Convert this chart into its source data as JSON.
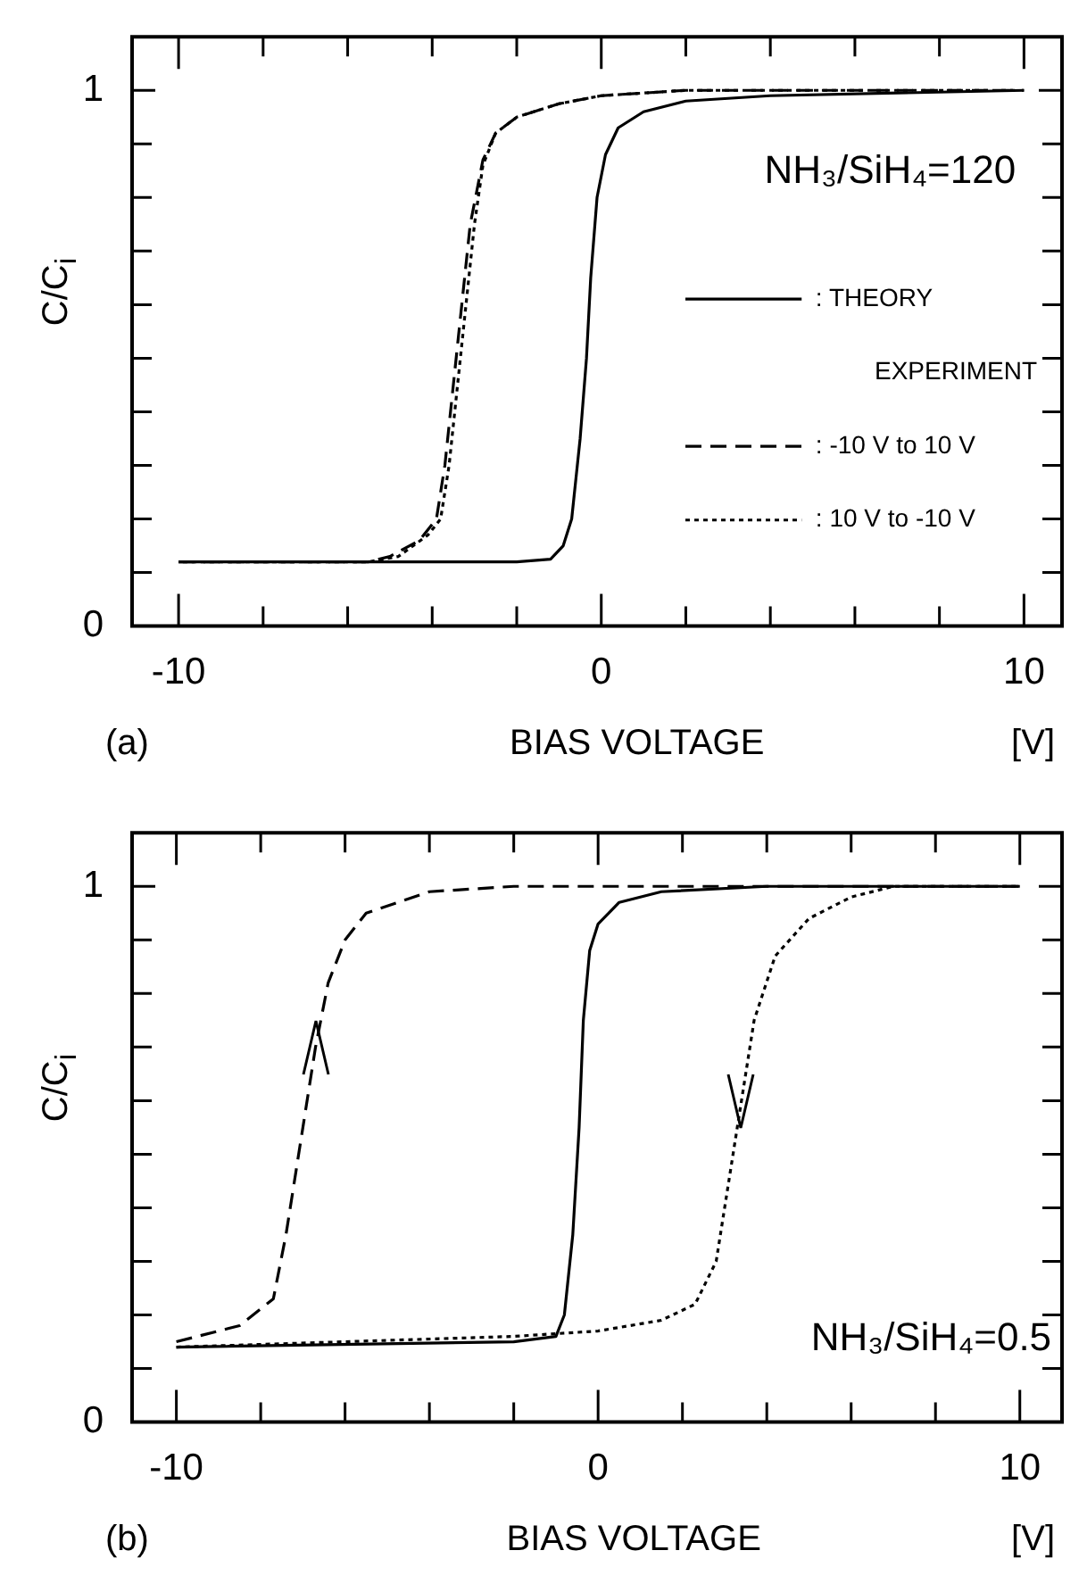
{
  "chart_data": [
    {
      "type": "line",
      "title": "(a)",
      "xlabel": "BIAS VOLTAGE",
      "ylabel": "C/C$_{i}$",
      "legend_title": "EXPERIMENT",
      "legend": "right",
      "annotations": [
        "NH₃/SiH₄=120",
        "[V]"
      ],
      "xlim": [
        -11.1,
        10.9
      ],
      "ylim": [
        0,
        1.1
      ],
      "xticks": [
        {
          "value": -10,
          "label": "-10"
        },
        {
          "value": -8,
          "label": null
        },
        {
          "value": -6,
          "label": null
        },
        {
          "value": -4,
          "label": null
        },
        {
          "value": -2,
          "label": null
        },
        {
          "value": 0,
          "label": "0"
        },
        {
          "value": 2,
          "label": null
        },
        {
          "value": 4,
          "label": null
        },
        {
          "value": 6,
          "label": null
        },
        {
          "value": 8,
          "label": null
        },
        {
          "value": 10,
          "label": "10"
        }
      ],
      "yticks": [
        {
          "value": 0,
          "label": "0"
        },
        {
          "value": 0.1,
          "label": null
        },
        {
          "value": 0.2,
          "label": null
        },
        {
          "value": 0.3,
          "label": null
        },
        {
          "value": 0.4,
          "label": null
        },
        {
          "value": 0.5,
          "label": null
        },
        {
          "value": 0.6,
          "label": null
        },
        {
          "value": 0.7,
          "label": null
        },
        {
          "value": 0.8,
          "label": null
        },
        {
          "value": 0.9,
          "label": null
        },
        {
          "value": 1,
          "label": "1"
        }
      ],
      "grid": false,
      "marker": "none",
      "series": [
        {
          "name": ": THEORY",
          "color": "#000000",
          "line_style": "solid",
          "x": [
            -10,
            -2,
            -1.2,
            -0.9,
            -0.7,
            -0.5,
            -0.35,
            -0.25,
            -0.1,
            0.1,
            0.4,
            1,
            2,
            4,
            10
          ],
          "values": [
            0.12,
            0.12,
            0.125,
            0.15,
            0.2,
            0.35,
            0.5,
            0.65,
            0.8,
            0.88,
            0.93,
            0.96,
            0.98,
            0.99,
            1.0
          ]
        },
        {
          "name": ": -10 V to 10 V",
          "color": "#000000",
          "line_style": "dashed",
          "x": [
            -10,
            -5.5,
            -5,
            -4.3,
            -3.9,
            -3.7,
            -3.5,
            -3.3,
            -3.1,
            -2.8,
            -2.5,
            -2,
            -1,
            0,
            2,
            10
          ],
          "values": [
            0.12,
            0.12,
            0.13,
            0.16,
            0.2,
            0.3,
            0.45,
            0.6,
            0.75,
            0.87,
            0.92,
            0.95,
            0.975,
            0.99,
            1.0,
            1.0
          ]
        },
        {
          "name": ": 10 V to -10 V",
          "color": "#000000",
          "line_style": "dotted",
          "x": [
            -9.9,
            -5.5,
            -4.8,
            -4.1,
            -3.8,
            -3.6,
            -3.4,
            -3.2,
            -3.0,
            -2.8,
            -2.5,
            -2,
            -1,
            0,
            2,
            9.8
          ],
          "values": [
            0.12,
            0.12,
            0.13,
            0.17,
            0.2,
            0.3,
            0.45,
            0.6,
            0.75,
            0.86,
            0.92,
            0.95,
            0.975,
            0.99,
            1.0,
            1.0
          ]
        }
      ]
    },
    {
      "type": "line",
      "title": "(b)",
      "xlabel": "BIAS VOLTAGE",
      "ylabel": "C/C$_{i}$",
      "annotations": [
        "NH₃/SiH₄=0.5",
        "[V]"
      ],
      "xlim": [
        -11.05,
        11
      ],
      "ylim": [
        0,
        1.1
      ],
      "xticks": [
        {
          "value": -10,
          "label": "-10"
        },
        {
          "value": -8,
          "label": null
        },
        {
          "value": -6,
          "label": null
        },
        {
          "value": -4,
          "label": null
        },
        {
          "value": -2,
          "label": null
        },
        {
          "value": 0,
          "label": "0"
        },
        {
          "value": 2,
          "label": null
        },
        {
          "value": 4,
          "label": null
        },
        {
          "value": 6,
          "label": null
        },
        {
          "value": 8,
          "label": null
        },
        {
          "value": 10,
          "label": "10"
        }
      ],
      "yticks": [
        {
          "value": 0,
          "label": "0"
        },
        {
          "value": 0.1,
          "label": null
        },
        {
          "value": 0.2,
          "label": null
        },
        {
          "value": 0.3,
          "label": null
        },
        {
          "value": 0.4,
          "label": null
        },
        {
          "value": 0.5,
          "label": null
        },
        {
          "value": 0.6,
          "label": null
        },
        {
          "value": 0.7,
          "label": null
        },
        {
          "value": 0.8,
          "label": null
        },
        {
          "value": 0.9,
          "label": null
        },
        {
          "value": 1,
          "label": "1"
        }
      ],
      "grid": false,
      "marker": "none",
      "series": [
        {
          "color": "#000000",
          "line_style": "solid",
          "x": [
            -10,
            -2,
            -1,
            -0.8,
            -0.6,
            -0.45,
            -0.35,
            -0.2,
            0,
            0.5,
            1.5,
            4,
            10
          ],
          "values": [
            0.14,
            0.15,
            0.16,
            0.2,
            0.35,
            0.55,
            0.75,
            0.88,
            0.93,
            0.97,
            0.99,
            1.0,
            1.0
          ]
        },
        {
          "color": "#000000",
          "line_style": "dashed",
          "x": [
            -10,
            -8.5,
            -7.7,
            -7.4,
            -7.0,
            -6.7,
            -6.4,
            -6,
            -5.5,
            -4,
            -2,
            10
          ],
          "values": [
            0.15,
            0.18,
            0.23,
            0.35,
            0.55,
            0.7,
            0.82,
            0.9,
            0.95,
            0.99,
            1.0,
            1.0
          ]
        },
        {
          "color": "#000000",
          "line_style": "dotted",
          "x": [
            -10,
            -2,
            0,
            1.5,
            2.3,
            2.8,
            3.1,
            3.4,
            3.7,
            4.2,
            5,
            6,
            7,
            10
          ],
          "values": [
            0.14,
            0.16,
            0.17,
            0.19,
            0.22,
            0.3,
            0.45,
            0.6,
            0.75,
            0.87,
            0.94,
            0.98,
            1.0,
            1.0
          ]
        }
      ]
    }
  ]
}
